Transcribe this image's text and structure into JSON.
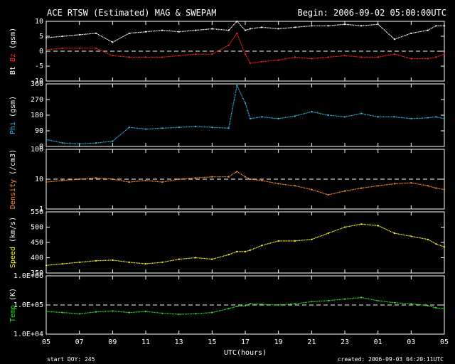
{
  "title": "ACE RTSW (Estimated) MAG & SWEPAM",
  "begin": "Begin: 2006-09-02 05:00:00UTC",
  "xlabel": "UTC(hours)",
  "footer_left": "start DOY: 245",
  "footer_right": "created: 2006-09-03 04:20:11UTC",
  "colors": {
    "bt": "#ffffff",
    "bz": "#ff2020",
    "phi": "#30b8e8",
    "density": "#ff9030",
    "speed": "#ffff30",
    "temp": "#30e030"
  },
  "chart_data": {
    "type": "scatter",
    "x_unit": "hours after 2006-09-02 05:00 UTC",
    "x_ticks": [
      "05",
      "07",
      "09",
      "11",
      "13",
      "15",
      "17",
      "19",
      "21",
      "23",
      "01",
      "03",
      "05"
    ],
    "xlim": [
      0,
      24
    ],
    "panels": [
      {
        "id": "mag",
        "ylabel_parts": [
          {
            "text": "Bt",
            "color": "#ffffff"
          },
          {
            "text": " Bz",
            "color": "#ff2020"
          },
          {
            "text": " (gsm)",
            "color": "#ffffff"
          }
        ],
        "ylim": [
          -10,
          10
        ],
        "scale": "linear",
        "ticks": [
          {
            "v": 10,
            "l": "10"
          },
          {
            "v": 5,
            "l": "5"
          },
          {
            "v": 0,
            "l": "0"
          },
          {
            "v": -5,
            "l": "-5"
          },
          {
            "v": -10,
            "l": "-10"
          }
        ],
        "ref_line": 0,
        "series": [
          {
            "key": "bt",
            "color": "#ffffff",
            "x": [
              0,
              1,
              2,
              3,
              4,
              5,
              6,
              7,
              8,
              9,
              10,
              11,
              11.5,
              12,
              12.3,
              13,
              14,
              15,
              16,
              17,
              18,
              19,
              20,
              21,
              22,
              23,
              23.5,
              24
            ],
            "y": [
              4.5,
              5,
              5.5,
              6,
              3,
              6,
              6.5,
              7,
              6.5,
              7,
              7.5,
              7,
              10,
              7,
              7.5,
              8,
              7.5,
              8,
              8.5,
              8.5,
              9,
              8.5,
              9,
              4,
              6,
              7,
              8.5,
              8.5
            ]
          },
          {
            "key": "bz",
            "color": "#ff2020",
            "x": [
              0,
              1,
              2,
              3,
              4,
              5,
              6,
              7,
              8,
              9,
              10,
              11,
              11.5,
              12,
              12.3,
              13,
              14,
              15,
              16,
              17,
              18,
              19,
              20,
              21,
              22,
              23,
              23.5,
              24
            ],
            "y": [
              0.5,
              1,
              1,
              1,
              -1.5,
              -2,
              -2,
              -2,
              -1.5,
              -1,
              -1,
              2,
              6,
              -1,
              -4,
              -3.5,
              -3,
              -2,
              -2.5,
              -2,
              -1.5,
              -2,
              -2,
              -1,
              -2.5,
              -2.5,
              -2,
              -1
            ]
          }
        ]
      },
      {
        "id": "phi",
        "ylabel_parts": [
          {
            "text": "Phi",
            "color": "#30b8e8"
          },
          {
            "text": " (gsm)",
            "color": "#ffffff"
          }
        ],
        "ylim": [
          0,
          360
        ],
        "scale": "linear",
        "ticks": [
          {
            "v": 360,
            "l": "360"
          },
          {
            "v": 270,
            "l": "270"
          },
          {
            "v": 180,
            "l": "180"
          },
          {
            "v": 90,
            "l": "90"
          },
          {
            "v": 0,
            "l": "0"
          }
        ],
        "ref_line": null,
        "series": [
          {
            "key": "phi",
            "color": "#30b8e8",
            "x": [
              0,
              1,
              2,
              3,
              4,
              5,
              6,
              7,
              8,
              9,
              10,
              11,
              11.5,
              12,
              12.3,
              13,
              14,
              15,
              16,
              17,
              18,
              19,
              20,
              21,
              22,
              23,
              23.5,
              24
            ],
            "y": [
              40,
              20,
              15,
              20,
              30,
              110,
              100,
              105,
              110,
              115,
              110,
              105,
              350,
              250,
              160,
              170,
              160,
              175,
              200,
              180,
              170,
              190,
              170,
              170,
              160,
              165,
              170,
              160
            ]
          }
        ]
      },
      {
        "id": "density",
        "ylabel_parts": [
          {
            "text": "Density",
            "color": "#ff9030"
          },
          {
            "text": " (/cm3)",
            "color": "#ffffff"
          }
        ],
        "ylim": [
          1,
          100
        ],
        "scale": "log",
        "ticks": [
          {
            "v": 100,
            "l": "100"
          },
          {
            "v": 10,
            "l": "10"
          },
          {
            "v": 1,
            "l": "1"
          }
        ],
        "ref_line": 10,
        "series": [
          {
            "key": "density",
            "color": "#ff9030",
            "x": [
              0,
              1,
              2,
              3,
              4,
              5,
              6,
              7,
              8,
              9,
              10,
              11,
              11.5,
              12,
              12.3,
              13,
              14,
              15,
              16,
              17,
              18,
              19,
              20,
              21,
              22,
              23,
              23.5,
              24
            ],
            "y": [
              8,
              9,
              10,
              11,
              10,
              8,
              9,
              8,
              10,
              11,
              12,
              12,
              18,
              12,
              10,
              9,
              7,
              6,
              4.5,
              3,
              4,
              5,
              6,
              7,
              7.5,
              6,
              5,
              4.5
            ]
          }
        ]
      },
      {
        "id": "speed",
        "ylabel_parts": [
          {
            "text": "Speed",
            "color": "#ffff30"
          },
          {
            "text": " (km/s)",
            "color": "#ffffff"
          }
        ],
        "ylim": [
          350,
          550
        ],
        "scale": "linear",
        "ticks": [
          {
            "v": 550,
            "l": "550"
          },
          {
            "v": 500,
            "l": "500"
          },
          {
            "v": 450,
            "l": "450"
          },
          {
            "v": 400,
            "l": "400"
          },
          {
            "v": 350,
            "l": "350"
          }
        ],
        "ref_line": null,
        "series": [
          {
            "key": "speed",
            "color": "#ffff30",
            "x": [
              0,
              1,
              2,
              3,
              4,
              5,
              6,
              7,
              8,
              9,
              10,
              11,
              11.5,
              12,
              12.3,
              13,
              14,
              15,
              16,
              17,
              18,
              19,
              20,
              21,
              22,
              23,
              23.5,
              24
            ],
            "y": [
              375,
              380,
              385,
              390,
              392,
              385,
              380,
              385,
              395,
              400,
              395,
              410,
              420,
              420,
              425,
              440,
              455,
              455,
              460,
              480,
              500,
              510,
              505,
              480,
              470,
              460,
              445,
              435
            ]
          }
        ]
      },
      {
        "id": "temp",
        "ylabel_parts": [
          {
            "text": "Temp",
            "color": "#30e030"
          },
          {
            "text": " (K)",
            "color": "#ffffff"
          }
        ],
        "ylim": [
          10000,
          1000000
        ],
        "scale": "log",
        "ticks": [
          {
            "v": 1000000,
            "l": "1.0E+06"
          },
          {
            "v": 100000,
            "l": "1.0E+05"
          },
          {
            "v": 10000,
            "l": "1.0E+04"
          }
        ],
        "ref_line": 100000,
        "series": [
          {
            "key": "temp",
            "color": "#30e030",
            "x": [
              0,
              1,
              2,
              3,
              4,
              5,
              6,
              7,
              8,
              9,
              10,
              11,
              11.5,
              12,
              12.3,
              13,
              14,
              15,
              16,
              17,
              18,
              19,
              20,
              21,
              22,
              23,
              23.5,
              24
            ],
            "y": [
              60000,
              55000,
              50000,
              58000,
              62000,
              55000,
              60000,
              52000,
              48000,
              50000,
              55000,
              75000,
              90000,
              95000,
              110000,
              105000,
              100000,
              110000,
              130000,
              140000,
              160000,
              180000,
              140000,
              120000,
              110000,
              95000,
              80000,
              75000
            ]
          }
        ]
      }
    ]
  }
}
